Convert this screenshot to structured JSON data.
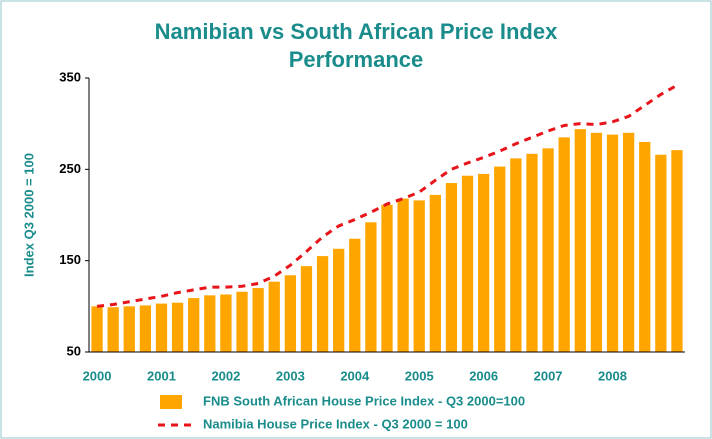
{
  "chart_data": {
    "type": "bar_line",
    "title": "Namibian vs South African Price Index Performance",
    "y_label": "Index Q3 2000 = 100",
    "categories": [
      "2000",
      null,
      null,
      null,
      "2001",
      null,
      null,
      null,
      "2002",
      null,
      null,
      null,
      "2003",
      null,
      null,
      null,
      "2004",
      null,
      null,
      null,
      "2005",
      null,
      null,
      null,
      "2006",
      null,
      null,
      null,
      "2007",
      null,
      null,
      null,
      "2008",
      null,
      null,
      null,
      null
    ],
    "series": [
      {
        "name": "FNB South African House Price Index - Q3 2000=100",
        "kind": "bar",
        "color": "#ffa500",
        "values": [
          100,
          99,
          100,
          101,
          103,
          104,
          109,
          112,
          113,
          116,
          120,
          127,
          134,
          144,
          155,
          163,
          174,
          192,
          211,
          218,
          216,
          222,
          235,
          243,
          245,
          253,
          262,
          267,
          273,
          285,
          294,
          290,
          288,
          290,
          280,
          266,
          271
        ]
      },
      {
        "name": "Namibia House Price Index - Q3 2000 = 100",
        "kind": "line",
        "color": "#e8141a",
        "values": [
          100,
          102,
          105,
          108,
          111,
          115,
          118,
          121,
          121,
          122,
          125,
          133,
          145,
          160,
          176,
          188,
          195,
          203,
          212,
          218,
          225,
          238,
          250,
          257,
          263,
          270,
          278,
          285,
          292,
          298,
          300,
          299,
          302,
          308,
          320,
          332,
          342
        ]
      }
    ],
    "ylim": [
      50,
      350
    ],
    "yticks": [
      50,
      150,
      250,
      350
    ],
    "grid": false
  }
}
